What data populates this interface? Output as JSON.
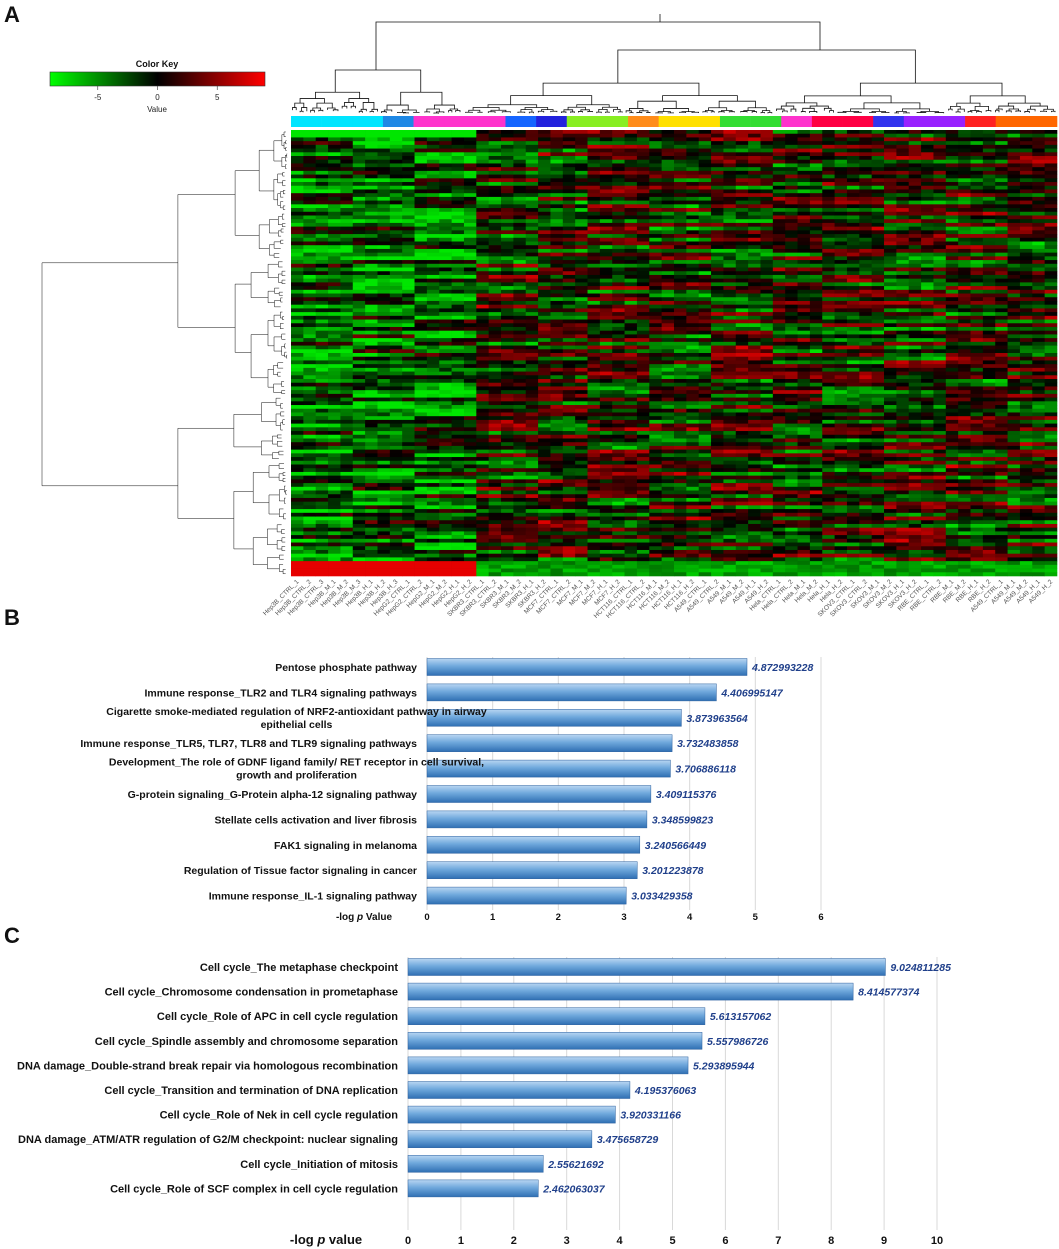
{
  "panels": {
    "a": "A",
    "b": "B",
    "c": "C"
  },
  "heatmap": {
    "color_key_title": "Color Key",
    "color_key_xlabel": "Value",
    "color_key_ticks": [
      "-5",
      "0",
      "5"
    ],
    "color_key_tick_values": [
      -5,
      0,
      5
    ],
    "color_key_range": [
      -9,
      9
    ],
    "colors": {
      "low": "#00ff00",
      "mid": "#000000",
      "high": "#ff0000"
    },
    "group_colors": [
      "#00e5ff",
      "#00e5ff",
      "#00e5ff",
      "#1e88e5",
      "#ff33cc",
      "#ff33cc",
      "#ff33cc",
      "#1565ff",
      "#2222dd",
      "#88ee22",
      "#88ee22",
      "#ff8c1a",
      "#ffe000",
      "#ffe000",
      "#33dd33",
      "#33dd33",
      "#ff33cc",
      "#ff0044",
      "#ff0044",
      "#3333ee",
      "#9922ff",
      "#9922ff",
      "#ff2222",
      "#ff6600",
      "#ff6600"
    ],
    "samples": [
      "Hep3B_CTRL_1",
      "Hep3B_CTRL_2",
      "Hep3B_CTRL_3",
      "Hep3B_M_1",
      "Hep3B_M_2",
      "Hep3B_M_3",
      "Hep3B_H_1",
      "Hep3B_H_2",
      "Hep3B_H_3",
      "HepG2_CTRL_1",
      "HepG2_CTRL_2",
      "HepG2_M_1",
      "HepG2_M_2",
      "HepG2_H_1",
      "HepG2_H_2",
      "SKBR3_CTRL_1",
      "SKBR3_CTRL_2",
      "SKBR3_M_1",
      "SKBR3_M_2",
      "SKBR3_H_1",
      "SKBR3_H_2",
      "MCF7_CTRL_1",
      "MCF7_CTRL_2",
      "MCF7_M_1",
      "MCF7_M_2",
      "MCF7_H_1",
      "MCF7_H_2",
      "HCT116_CTRL_1",
      "HCT116_CTRL_2",
      "HCT116_M_1",
      "HCT116_M_2",
      "HCT116_H_1",
      "HCT116_H_2",
      "A549_CTRL_1",
      "A549_CTRL_2",
      "A549_M_1",
      "A549_M_2",
      "A549_H_1",
      "A549_H_2",
      "Hela_CTRL_1",
      "Hela_CTRL_2",
      "Hela_M_1",
      "Hela_M_2",
      "Hela_H_1",
      "Hela_H_2",
      "SKOV3_CTRL_1",
      "SKOV3_CTRL_2",
      "SKOV3_M_1",
      "SKOV3_M_2",
      "SKOV3_H_1",
      "SKOV3_H_2",
      "RBE_CTRL_1",
      "RBE_CTRL_2",
      "RBE_M_1",
      "RBE_M_2",
      "RBE_H_1",
      "RBE_H_2",
      "A549_CTRL_1",
      "A549_M_1",
      "A549_M_2",
      "A549_H_1",
      "A549_H_2"
    ]
  },
  "chart_data": [
    {
      "type": "bar",
      "orientation": "horizontal",
      "panel": "B",
      "categories": [
        "Pentose phosphate pathway",
        "Immune response_TLR2 and TLR4 signaling pathways",
        "Cigarette smoke-mediated regulation of NRF2-antioxidant pathway in airway epithelial cells",
        "Immune response_TLR5, TLR7, TLR8 and TLR9 signaling pathways",
        "Development_The role of GDNF ligand family/ RET receptor in cell survival, growth and proliferation",
        "G-protein signaling_G-Protein alpha-12 signaling pathway",
        "Stellate cells activation and liver fibrosis",
        "FAK1 signaling in melanoma",
        "Regulation of Tissue factor signaling in cancer",
        "Immune response_IL-1 signaling pathway"
      ],
      "category_lines": [
        [
          "Pentose phosphate pathway"
        ],
        [
          "Immune response_TLR2 and TLR4 signaling pathways"
        ],
        [
          "Cigarette smoke-mediated regulation of NRF2-antioxidant pathway in airway",
          "epithelial cells"
        ],
        [
          "Immune response_TLR5, TLR7, TLR8 and TLR9 signaling pathways"
        ],
        [
          "Development_The role of GDNF ligand family/ RET receptor in cell survival,",
          "growth and proliferation"
        ],
        [
          "G-protein signaling_G-Protein alpha-12 signaling pathway"
        ],
        [
          "Stellate cells activation and liver fibrosis"
        ],
        [
          "FAK1 signaling in melanoma"
        ],
        [
          "Regulation of Tissue factor signaling in cancer"
        ],
        [
          "Immune response_IL-1 signaling pathway"
        ]
      ],
      "values": [
        4.872993228,
        4.406995147,
        3.873963564,
        3.732483858,
        3.706886118,
        3.409115376,
        3.348599823,
        3.240566449,
        3.201223878,
        3.033429358
      ],
      "value_labels": [
        "4.872993228",
        "4.406995147",
        "3.873963564",
        "3.732483858",
        "3.706886118",
        "3.409115376",
        "3.348599823",
        "3.240566449",
        "3.201223878",
        "3.033429358"
      ],
      "xlabel_prefix": "-log ",
      "xlabel_italic": "p",
      "xlabel_suffix": " Value",
      "xlim": [
        0,
        6
      ],
      "xticks": [
        "0",
        "1",
        "2",
        "3",
        "4",
        "5",
        "6"
      ],
      "grid": true
    },
    {
      "type": "bar",
      "orientation": "horizontal",
      "panel": "C",
      "categories": [
        "Cell cycle_The metaphase checkpoint",
        "Cell cycle_Chromosome condensation in prometaphase",
        "Cell cycle_Role of APC in cell cycle regulation",
        "Cell cycle_Spindle assembly and chromosome separation",
        "DNA damage_Double-strand break repair via homologous recombination",
        "Cell cycle_Transition and termination of DNA replication",
        "Cell cycle_Role of Nek in cell cycle regulation",
        "DNA damage_ATM/ATR regulation of G2/M checkpoint: nuclear signaling",
        "Cell cycle_Initiation of mitosis",
        "Cell cycle_Role of SCF complex in cell cycle regulation"
      ],
      "values": [
        9.024811285,
        8.414577374,
        5.613157062,
        5.557986726,
        5.293895944,
        4.195376063,
        3.920331166,
        3.475658729,
        2.55621692,
        2.462063037
      ],
      "value_labels": [
        "9.024811285",
        "8.414577374",
        "5.613157062",
        "5.557986726",
        "5.293895944",
        "4.195376063",
        "3.920331166",
        "3.475658729",
        "2.55621692",
        "2.462063037"
      ],
      "xlabel_prefix": "-log ",
      "xlabel_italic": "p",
      "xlabel_suffix": " value",
      "xlim": [
        0,
        10
      ],
      "xticks": [
        "0",
        "1",
        "2",
        "3",
        "4",
        "5",
        "6",
        "7",
        "8",
        "9",
        "10"
      ],
      "grid": true
    }
  ]
}
